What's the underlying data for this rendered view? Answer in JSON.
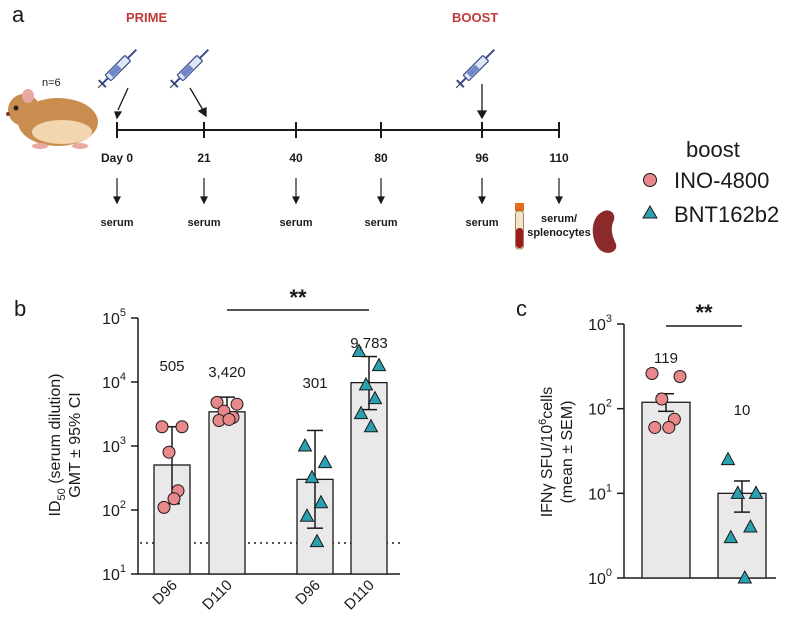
{
  "panel_a": {
    "letter": "a",
    "prime_label": "PRIME",
    "boost_label": "BOOST",
    "n_label": "n=6",
    "days": [
      "Day 0",
      "21",
      "40",
      "80",
      "96",
      "110"
    ],
    "samples": [
      "serum",
      "serum",
      "serum",
      "serum",
      "serum"
    ],
    "last_sample": [
      "serum/",
      "splenocytes"
    ]
  },
  "legend": {
    "title": "boost",
    "items": [
      {
        "label": "INO-4800",
        "color": "#e8888a",
        "marker": "circle"
      },
      {
        "label": "BNT162b2",
        "color": "#2aa0b0",
        "marker": "triangle"
      }
    ]
  },
  "colors": {
    "ino": "#e8888a",
    "bnt": "#2aa0b0",
    "bar": "#e9e9e9",
    "stroke": "#1a1a1a",
    "accent": "#c0393b"
  },
  "panel_b": {
    "letter": "b",
    "ylabel_1": "ID",
    "ylabel_sub": "50",
    "ylabel_2": " (serum dilution)",
    "ylabel_line2": "GMT ± 95% CI",
    "significance": "**",
    "tick_labels": [
      {
        "base": "10",
        "exp": "1"
      },
      {
        "base": "10",
        "exp": "2"
      },
      {
        "base": "10",
        "exp": "3"
      },
      {
        "base": "10",
        "exp": "4"
      },
      {
        "base": "10",
        "exp": "5"
      }
    ],
    "value_labels": [
      "505",
      "3,420",
      "301",
      "9,783"
    ]
  },
  "panel_c": {
    "letter": "c",
    "ylabel_1": "IFNγ SFU/10",
    "ylabel_sup": "6",
    "ylabel_2": "cells",
    "ylabel_line2": "(mean ± SEM)",
    "significance": "**",
    "tick_labels": [
      {
        "base": "10",
        "exp": "0"
      },
      {
        "base": "10",
        "exp": "1"
      },
      {
        "base": "10",
        "exp": "2"
      },
      {
        "base": "10",
        "exp": "3"
      }
    ],
    "value_labels": [
      "119",
      "10"
    ]
  },
  "chart_data": [
    {
      "type": "bar",
      "title": "",
      "ylabel": "ID50 (serum dilution) GMT ± 95% CI",
      "yscale": "log",
      "ylim": [
        10,
        100000
      ],
      "lower_limit_of_detection": 32,
      "categories": [
        "D96",
        "D110",
        "D96",
        "D110"
      ],
      "groups": [
        "INO-4800",
        "INO-4800",
        "BNT162b2",
        "BNT162b2"
      ],
      "values": [
        505,
        3420,
        301,
        9783
      ],
      "ci_low": [
        125,
        2300,
        52,
        3700
      ],
      "ci_high": [
        2000,
        5800,
        1750,
        25000
      ],
      "points": [
        [
          2000,
          2000,
          800,
          200,
          110,
          150
        ],
        [
          4800,
          4500,
          3500,
          2800,
          2500,
          2600
        ],
        [
          1000,
          550,
          320,
          130,
          80,
          32
        ],
        [
          30000,
          18000,
          9000,
          5500,
          3200,
          2000
        ]
      ],
      "significance": [
        {
          "between": [
            0,
            3
          ],
          "label": "**"
        }
      ]
    },
    {
      "type": "bar",
      "title": "",
      "ylabel": "IFNγ SFU/10^6 cells (mean ± SEM)",
      "yscale": "log",
      "ylim": [
        1,
        1000
      ],
      "categories": [
        "INO-4800",
        "BNT162b2"
      ],
      "values": [
        119,
        10
      ],
      "err_low": [
        93,
        6
      ],
      "err_high": [
        150,
        14
      ],
      "points": [
        [
          260,
          240,
          130,
          75,
          60,
          60
        ],
        [
          25,
          10,
          10,
          4,
          3,
          1
        ]
      ],
      "significance": [
        {
          "between": [
            0,
            1
          ],
          "label": "**"
        }
      ]
    }
  ]
}
